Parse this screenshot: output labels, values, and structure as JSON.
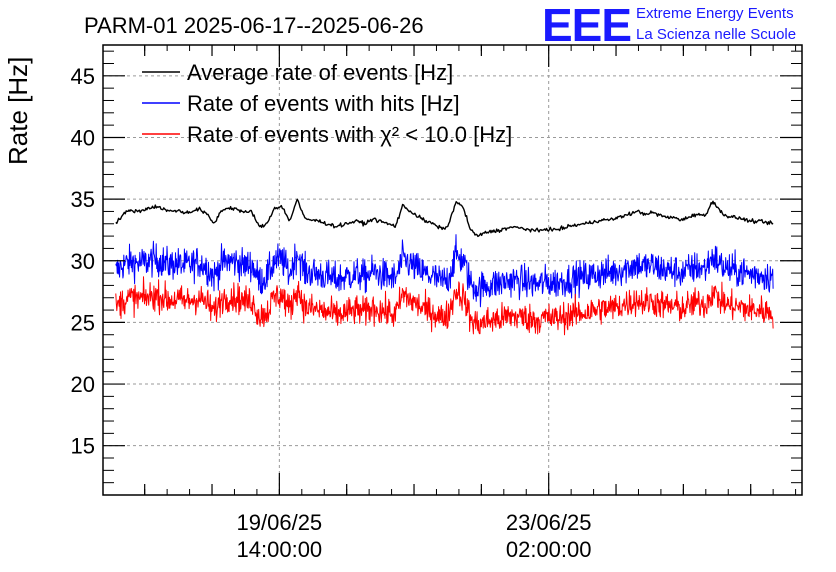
{
  "header": {
    "title": "PARM-01 2025-06-17--2025-06-26",
    "logo_text": "EEE",
    "logo_line1": "Extreme Energy Events",
    "logo_line2": "La Scienza nelle Scuole"
  },
  "chart_data": {
    "type": "line",
    "title": "PARM-01 2025-06-17--2025-06-26",
    "ylabel": "Rate [Hz]",
    "xlabel": "",
    "ylim": [
      11,
      47.5
    ],
    "y_ticks": [
      15,
      20,
      25,
      30,
      35,
      40,
      45
    ],
    "x_range": [
      "2025-06-17 07:00",
      "2025-06-26 09:00"
    ],
    "x_start": "2025-06-17 11:00",
    "x_end": "2025-06-26 00:00",
    "x_major_ticks": [
      {
        "date": "19/06/25",
        "time": "14:00:00"
      },
      {
        "date": "23/06/25",
        "time": "02:00:00"
      }
    ],
    "grid": true,
    "legend_position": "top-left",
    "legend": [
      {
        "label": "Average rate of events [Hz]",
        "color": "#000000"
      },
      {
        "label": "Rate of events with hits [Hz]",
        "color": "#0000ff"
      },
      {
        "label": "Rate of events with χ² < 10.0 [Hz]",
        "color": "#ff0000"
      }
    ],
    "series": [
      {
        "name": "Average rate of events [Hz]",
        "color": "#000000",
        "noise": 0.15,
        "values": [
          33.0,
          33.8,
          34.1,
          34.0,
          34.2,
          34.4,
          34.3,
          34.0,
          34.1,
          33.9,
          34.0,
          34.2,
          33.8,
          33.0,
          34.1,
          34.3,
          34.2,
          33.9,
          34.0,
          32.7,
          33.0,
          34.3,
          34.4,
          33.2,
          35.0,
          33.4,
          33.3,
          33.2,
          33.0,
          32.8,
          32.9,
          33.1,
          33.2,
          33.0,
          33.4,
          33.2,
          33.0,
          32.8,
          34.5,
          34.0,
          33.6,
          33.2,
          33.0,
          32.6,
          32.8,
          34.8,
          34.3,
          32.4,
          32.0,
          32.3,
          32.4,
          32.5,
          32.7,
          32.7,
          32.6,
          32.5,
          32.4,
          32.6,
          32.5,
          32.6,
          32.8,
          32.9,
          33.0,
          33.1,
          33.3,
          33.3,
          33.4,
          33.6,
          33.8,
          34.0,
          33.8,
          33.9,
          33.7,
          33.5,
          33.5,
          33.3,
          33.6,
          33.8,
          33.6,
          34.9,
          34.0,
          33.6,
          33.5,
          33.4,
          33.2,
          33.2,
          33.1,
          33.0
        ]
      },
      {
        "name": "Rate of events with hits [Hz]",
        "color": "#0000ff",
        "noise": 1.1,
        "values": [
          29.1,
          29.7,
          29.9,
          29.8,
          29.9,
          30.1,
          30.0,
          29.7,
          29.8,
          29.6,
          29.7,
          29.9,
          29.5,
          28.7,
          29.8,
          30.0,
          29.9,
          29.6,
          29.7,
          28.4,
          28.7,
          30.0,
          30.1,
          28.9,
          30.7,
          29.1,
          29.0,
          28.9,
          28.7,
          28.5,
          28.6,
          28.8,
          28.9,
          28.7,
          29.1,
          28.9,
          28.7,
          28.5,
          30.2,
          29.7,
          29.3,
          28.9,
          28.7,
          28.3,
          28.5,
          30.5,
          30.0,
          28.1,
          27.7,
          28.0,
          28.1,
          28.2,
          28.4,
          28.4,
          28.3,
          28.2,
          28.1,
          28.3,
          28.2,
          28.3,
          28.5,
          28.6,
          28.7,
          28.8,
          29.0,
          29.0,
          29.1,
          29.3,
          29.5,
          29.7,
          29.5,
          29.6,
          29.4,
          29.2,
          29.2,
          29.0,
          29.3,
          29.5,
          29.3,
          30.4,
          29.7,
          29.3,
          29.2,
          29.1,
          28.9,
          28.9,
          28.8,
          28.7
        ]
      },
      {
        "name": "Rate of events with χ² < 10.0 [Hz]",
        "color": "#ff0000",
        "noise": 1.0,
        "values": [
          26.2,
          26.8,
          27.0,
          26.9,
          27.0,
          27.2,
          27.1,
          26.8,
          26.9,
          26.7,
          26.8,
          27.0,
          26.6,
          25.8,
          26.9,
          27.1,
          27.0,
          26.7,
          26.8,
          25.5,
          25.8,
          27.1,
          27.2,
          26.0,
          27.8,
          26.2,
          26.1,
          26.0,
          25.8,
          25.6,
          25.7,
          25.9,
          26.0,
          25.8,
          26.2,
          26.0,
          25.8,
          25.6,
          27.3,
          26.8,
          26.4,
          26.0,
          25.8,
          25.4,
          25.6,
          27.6,
          27.1,
          25.2,
          24.8,
          25.1,
          25.2,
          25.3,
          25.5,
          25.5,
          25.4,
          25.3,
          25.2,
          25.4,
          25.3,
          25.4,
          25.6,
          25.7,
          25.8,
          25.9,
          26.1,
          26.1,
          26.2,
          26.4,
          26.6,
          26.8,
          26.6,
          26.7,
          26.5,
          26.3,
          26.3,
          26.1,
          26.4,
          26.6,
          26.4,
          27.5,
          26.8,
          26.4,
          26.3,
          26.2,
          26.0,
          26.0,
          25.9,
          25.8
        ]
      }
    ]
  }
}
